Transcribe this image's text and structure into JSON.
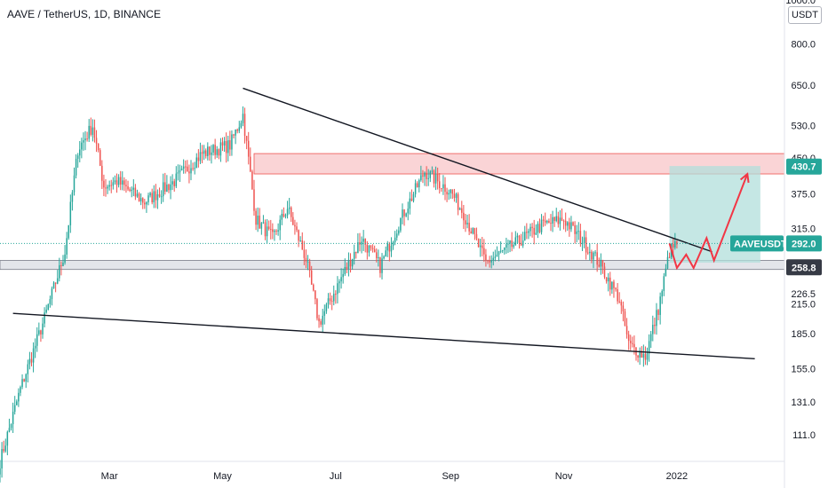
{
  "header": {
    "symbol": "AAVE / TetherUS, 1D, BINANCE"
  },
  "price_scale": {
    "unit": "USDT"
  },
  "colors": {
    "up": "#26a69a",
    "down": "#ef5350",
    "trend_line": "#131722",
    "projection": "#f23645",
    "resistance_zone": "#f7b8bb",
    "support_zone": "#d1d4dc",
    "target_zone": "#b2dfdb",
    "tag_teal": "#26a69a",
    "tag_dark": "#363a45",
    "current_line": "#26a69a"
  },
  "chart_data": {
    "type": "candlestick",
    "title": "AAVE / TetherUS, 1D, BINANCE",
    "y_scale": "log",
    "ylim": [
      97,
      1000
    ],
    "y_ticks": [
      "1000.0",
      "800.0",
      "650.0",
      "530.0",
      "450.0",
      "375.0",
      "315.0",
      "258.8",
      "226.5",
      "215.0",
      "185.0",
      "155.0",
      "131.0",
      "111.0"
    ],
    "x_ticks": [
      "Mar",
      "May",
      "Jul",
      "Sep",
      "Nov",
      "2022"
    ],
    "x_range": [
      "2021-01-01",
      "2022-02-28"
    ],
    "current_price": {
      "label": "AAVEUSDT",
      "value": "292.0"
    },
    "price_tags": [
      {
        "value": "430.7",
        "style": "teal"
      },
      {
        "value": "258.8",
        "style": "dark"
      }
    ],
    "keypoints": [
      {
        "date": "2021-01-01",
        "close": 97
      },
      {
        "date": "2021-01-12",
        "close": 140
      },
      {
        "date": "2021-01-25",
        "close": 200
      },
      {
        "date": "2021-02-05",
        "close": 280
      },
      {
        "date": "2021-02-12",
        "close": 470
      },
      {
        "date": "2021-02-20",
        "close": 530
      },
      {
        "date": "2021-02-26",
        "close": 390
      },
      {
        "date": "2021-03-05",
        "close": 400
      },
      {
        "date": "2021-03-20",
        "close": 360
      },
      {
        "date": "2021-04-05",
        "close": 400
      },
      {
        "date": "2021-04-20",
        "close": 460
      },
      {
        "date": "2021-05-05",
        "close": 480
      },
      {
        "date": "2021-05-12",
        "close": 560
      },
      {
        "date": "2021-05-19",
        "close": 330
      },
      {
        "date": "2021-05-28",
        "close": 300
      },
      {
        "date": "2021-06-05",
        "close": 350
      },
      {
        "date": "2021-06-15",
        "close": 270
      },
      {
        "date": "2021-06-22",
        "close": 195
      },
      {
        "date": "2021-07-05",
        "close": 250
      },
      {
        "date": "2021-07-15",
        "close": 300
      },
      {
        "date": "2021-07-25",
        "close": 260
      },
      {
        "date": "2021-08-05",
        "close": 330
      },
      {
        "date": "2021-08-18",
        "close": 420
      },
      {
        "date": "2021-09-01",
        "close": 380
      },
      {
        "date": "2021-09-08",
        "close": 340
      },
      {
        "date": "2021-09-20",
        "close": 265
      },
      {
        "date": "2021-10-05",
        "close": 290
      },
      {
        "date": "2021-10-20",
        "close": 320
      },
      {
        "date": "2021-11-01",
        "close": 330
      },
      {
        "date": "2021-11-10",
        "close": 300
      },
      {
        "date": "2021-11-20",
        "close": 265
      },
      {
        "date": "2021-12-01",
        "close": 220
      },
      {
        "date": "2021-12-06",
        "close": 175
      },
      {
        "date": "2021-12-15",
        "close": 165
      },
      {
        "date": "2021-12-22",
        "close": 210
      },
      {
        "date": "2021-12-28",
        "close": 280
      },
      {
        "date": "2022-01-01",
        "close": 292
      }
    ],
    "trend_lines": [
      {
        "from": [
          "2021-05-12",
          640
        ],
        "to": [
          "2022-01-20",
          280
        ]
      },
      {
        "from": [
          "2021-01-08",
          205
        ],
        "to": [
          "2022-02-12",
          163
        ]
      }
    ],
    "zones": [
      {
        "kind": "resistance",
        "from": "2021-05-18",
        "to": "2022-02-28",
        "low": 415,
        "high": 460
      },
      {
        "kind": "support",
        "from": "2021-01-01",
        "to": "2022-02-28",
        "low": 256,
        "high": 268
      },
      {
        "kind": "target",
        "from": "2021-12-28",
        "to": "2022-02-15",
        "low": 265,
        "high": 432
      }
    ],
    "projection": [
      [
        "2021-12-28",
        292
      ],
      [
        "2022-01-01",
        258
      ],
      [
        "2022-01-06",
        276
      ],
      [
        "2022-01-10",
        258
      ],
      [
        "2022-01-17",
        300
      ],
      [
        "2022-01-21",
        268
      ],
      [
        "2022-02-08",
        415
      ]
    ]
  }
}
